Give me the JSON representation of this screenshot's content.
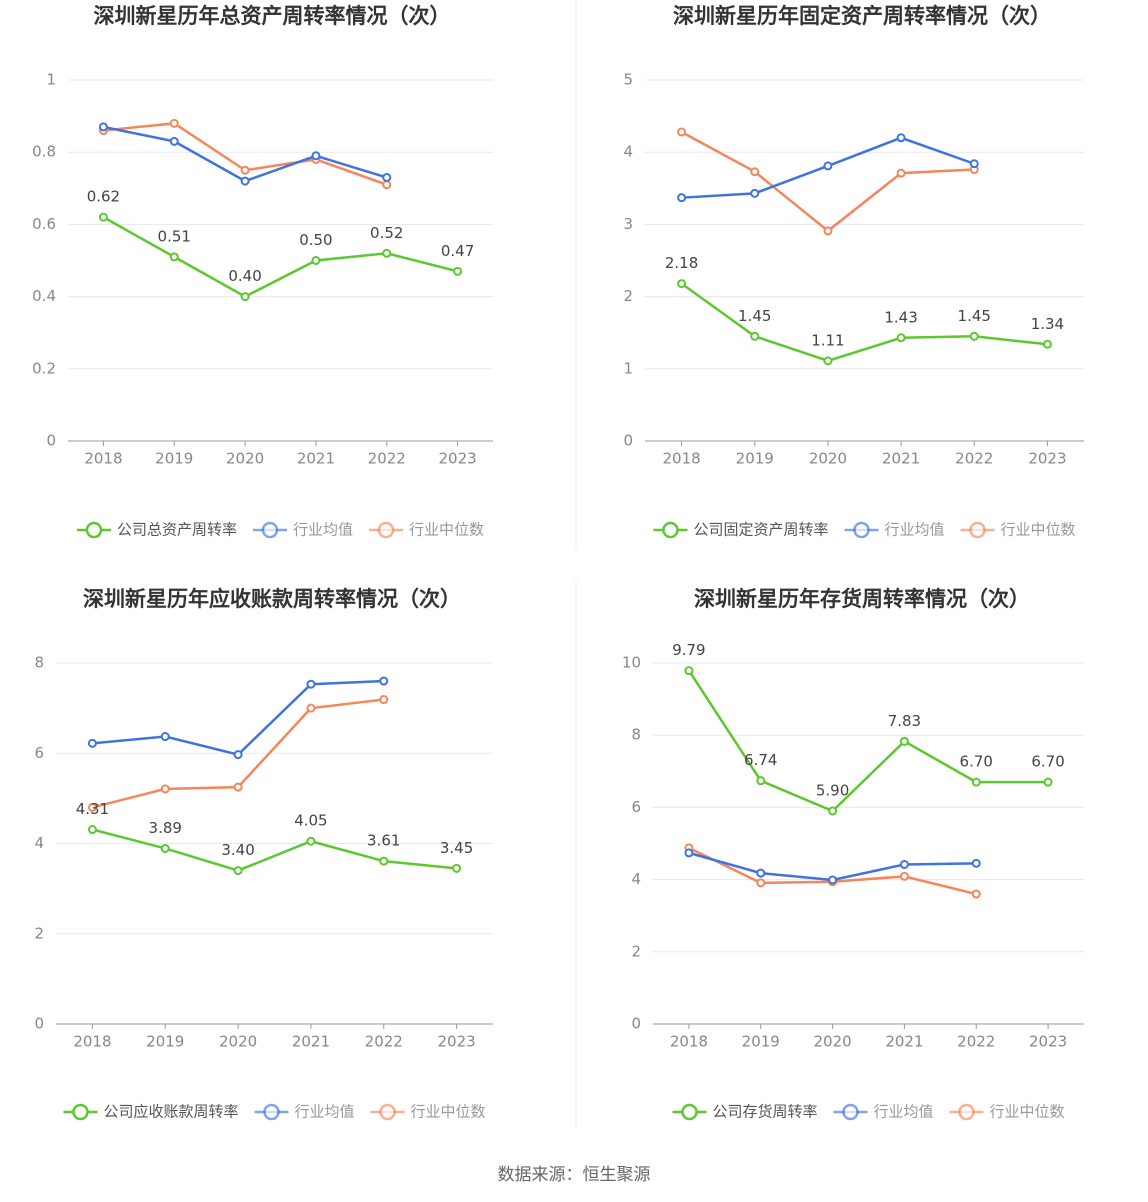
{
  "chart_data": [
    {
      "type": "line",
      "title": "深圳新星历年总资产周转率情况（次）",
      "categories": [
        "2018",
        "2019",
        "2020",
        "2021",
        "2022",
        "2023"
      ],
      "ylim": [
        0,
        1
      ],
      "yticks": [
        0,
        0.2,
        0.4,
        0.6,
        0.8,
        1
      ],
      "grid": true,
      "series": [
        {
          "name": "公司总资产周转率",
          "color": "#5cc72e",
          "values": [
            0.62,
            0.51,
            0.4,
            0.5,
            0.52,
            0.47
          ],
          "value_labels": [
            "0.62",
            "0.51",
            "0.40",
            "0.50",
            "0.52",
            "0.47"
          ]
        },
        {
          "name": "行业均值",
          "color": "#3f73df",
          "values": [
            0.87,
            0.83,
            0.72,
            0.79,
            0.73,
            null
          ]
        },
        {
          "name": "行业中位数",
          "color": "#f5865a",
          "values": [
            0.86,
            0.88,
            0.75,
            0.78,
            0.71,
            null
          ]
        }
      ]
    },
    {
      "type": "line",
      "title": "深圳新星历年固定资产周转率情况（次）",
      "categories": [
        "2018",
        "2019",
        "2020",
        "2021",
        "2022",
        "2023"
      ],
      "ylim": [
        0,
        5
      ],
      "yticks": [
        0,
        1,
        2,
        3,
        4,
        5
      ],
      "grid": true,
      "series": [
        {
          "name": "公司固定资产周转率",
          "color": "#5cc72e",
          "values": [
            2.18,
            1.45,
            1.11,
            1.43,
            1.45,
            1.34
          ],
          "value_labels": [
            "2.18",
            "1.45",
            "1.11",
            "1.43",
            "1.45",
            "1.34"
          ]
        },
        {
          "name": "行业均值",
          "color": "#3f73df",
          "values": [
            3.37,
            3.43,
            3.81,
            4.2,
            3.84,
            null
          ]
        },
        {
          "name": "行业中位数",
          "color": "#f5865a",
          "values": [
            4.28,
            3.73,
            2.91,
            3.71,
            3.76,
            null
          ]
        }
      ]
    },
    {
      "type": "line",
      "title": "深圳新星历年应收账款周转率情况（次）",
      "categories": [
        "2018",
        "2019",
        "2020",
        "2021",
        "2022",
        "2023"
      ],
      "ylim": [
        0,
        8
      ],
      "yticks": [
        0,
        2,
        4,
        6,
        8
      ],
      "grid": true,
      "series": [
        {
          "name": "公司应收账款周转率",
          "color": "#5cc72e",
          "values": [
            4.31,
            3.89,
            3.4,
            4.05,
            3.61,
            3.45
          ],
          "value_labels": [
            "4.31",
            "3.89",
            "3.40",
            "4.05",
            "3.61",
            "3.45"
          ]
        },
        {
          "name": "行业均值",
          "color": "#3f73df",
          "values": [
            6.22,
            6.37,
            5.97,
            7.53,
            7.6,
            null
          ]
        },
        {
          "name": "行业中位数",
          "color": "#f5865a",
          "values": [
            4.8,
            5.21,
            5.25,
            7.0,
            7.19,
            null
          ]
        }
      ]
    },
    {
      "type": "line",
      "title": "深圳新星历年存货周转率情况（次）",
      "categories": [
        "2018",
        "2019",
        "2020",
        "2021",
        "2022",
        "2023"
      ],
      "ylim": [
        0,
        10
      ],
      "yticks": [
        0,
        2,
        4,
        6,
        8,
        10
      ],
      "grid": true,
      "series": [
        {
          "name": "公司存货周转率",
          "color": "#5cc72e",
          "values": [
            9.79,
            6.74,
            5.9,
            7.83,
            6.7,
            6.7
          ],
          "value_labels": [
            "9.79",
            "6.74",
            "5.90",
            "7.83",
            "6.70",
            "6.70"
          ]
        },
        {
          "name": "行业均值",
          "color": "#3f73df",
          "values": [
            4.74,
            4.18,
            3.99,
            4.42,
            4.45,
            null
          ]
        },
        {
          "name": "行业中位数",
          "color": "#f5865a",
          "values": [
            4.88,
            3.91,
            3.94,
            4.09,
            3.6,
            null
          ]
        }
      ]
    }
  ],
  "source": "数据来源：恒生聚源"
}
